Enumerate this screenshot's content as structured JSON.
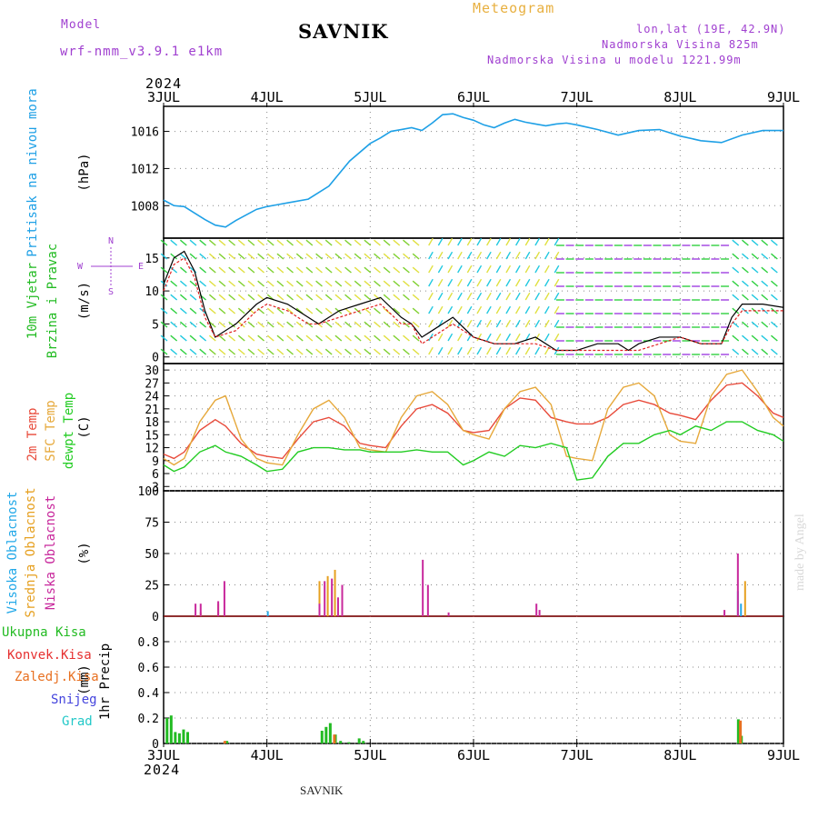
{
  "header": {
    "model_label": "Model",
    "model_name": "wrf-nmm_v3.9.1 e1km",
    "title": "SAVNIK",
    "meteogram": "Meteogram",
    "lonlat": "lon,lat (19E, 42.9N)",
    "altitude": "Nadmorska Visina 825m",
    "model_altitude": "Nadmorska Visina u modelu 1221.99m",
    "year_top": "2024",
    "year_bottom": "2024"
  },
  "footer": {
    "station": "SAVNIK",
    "credit": "made by Angel"
  },
  "colors": {
    "pressure": "#1ea0e6",
    "temp2m": "#e84a3a",
    "sfc": "#e6a83a",
    "dewpt": "#22cc22",
    "high": "#22a8e8",
    "mid": "#e6a020",
    "low": "#c8289c",
    "precip_total": "#22bb22",
    "precip_conv": "#e63030",
    "precip_frozen": "#e87020",
    "snow": "#4444dd",
    "hail": "#22c8c8",
    "header_purple": "#a040d0",
    "header_orange": "#e8b040"
  },
  "chart_data": [
    {
      "type": "line",
      "name": "pressure",
      "ylabel_left": "Pritisak na nivou mora",
      "unit": "(hPa)",
      "ylim": [
        1004.5,
        1018.7
      ],
      "yticks": [
        "1008",
        "1012",
        "1016"
      ],
      "x": [
        0,
        0.1,
        0.2,
        0.3,
        0.4,
        0.5,
        0.6,
        0.7,
        0.8,
        0.9,
        1.0,
        1.1,
        1.2,
        1.4,
        1.6,
        1.8,
        2.0,
        2.1,
        2.2,
        2.3,
        2.4,
        2.5,
        2.6,
        2.7,
        2.8,
        2.9,
        3.0,
        3.1,
        3.2,
        3.3,
        3.4,
        3.5,
        3.6,
        3.7,
        3.8,
        3.9,
        4.0,
        4.2,
        4.4,
        4.6,
        4.8,
        5.0,
        5.2,
        5.4,
        5.6,
        5.8,
        6.0
      ],
      "values": [
        1008.6,
        1008.0,
        1007.9,
        1007.2,
        1006.5,
        1005.9,
        1005.7,
        1006.4,
        1007.0,
        1007.6,
        1007.9,
        1008.1,
        1008.3,
        1008.7,
        1010.1,
        1012.8,
        1014.7,
        1015.3,
        1016.0,
        1016.2,
        1016.4,
        1016.1,
        1016.9,
        1017.8,
        1017.9,
        1017.5,
        1017.2,
        1016.7,
        1016.4,
        1016.9,
        1017.3,
        1017.0,
        1016.8,
        1016.6,
        1016.8,
        1016.9,
        1016.7,
        1016.2,
        1015.6,
        1016.1,
        1016.2,
        1015.5,
        1015.0,
        1014.8,
        1015.6,
        1016.1,
        1016.1
      ]
    },
    {
      "type": "line",
      "name": "wind",
      "ylabel_left": "10m Vjetar",
      "ylabel_left2": "Brzina i Pravac",
      "unit": "(m/s)",
      "compass": [
        "N",
        "W",
        "E",
        "S"
      ],
      "ylim": [
        -1,
        18
      ],
      "yticks": [
        "0",
        "5",
        "10",
        "15"
      ],
      "series": [
        {
          "name": "speed",
          "x": [
            0,
            0.1,
            0.2,
            0.3,
            0.4,
            0.5,
            0.7,
            0.9,
            1.0,
            1.2,
            1.4,
            1.5,
            1.7,
            1.9,
            2.1,
            2.3,
            2.4,
            2.5,
            2.6,
            2.7,
            2.8,
            3.0,
            3.2,
            3.4,
            3.6,
            3.8,
            4.0,
            4.2,
            4.4,
            4.5,
            4.6,
            4.8,
            5.0,
            5.2,
            5.4,
            5.5,
            5.6,
            5.8,
            6.0
          ],
          "values": [
            11,
            15,
            16,
            13,
            7,
            3,
            5,
            8,
            9,
            8,
            6,
            5,
            7,
            8,
            9,
            6,
            5,
            3,
            4,
            5,
            6,
            3,
            2,
            2,
            3,
            1,
            1,
            2,
            2,
            1,
            2,
            3,
            3,
            2,
            2,
            6,
            8,
            8,
            7.5
          ]
        },
        {
          "name": "gust",
          "x": [
            0,
            0.1,
            0.2,
            0.3,
            0.4,
            0.5,
            0.7,
            0.9,
            1.0,
            1.2,
            1.4,
            1.5,
            1.7,
            1.9,
            2.1,
            2.3,
            2.4,
            2.5,
            2.6,
            2.7,
            2.8,
            3.0,
            3.2,
            3.4,
            3.6,
            3.8,
            4.0,
            4.2,
            4.4,
            4.5,
            4.6,
            4.8,
            5.0,
            5.2,
            5.4,
            5.5,
            5.6,
            5.8,
            6.0
          ],
          "values": [
            10,
            14,
            15,
            12,
            6,
            3,
            4,
            7,
            8,
            7,
            5,
            5,
            6,
            7,
            8,
            5,
            5,
            2,
            3,
            4,
            5,
            3,
            2,
            2,
            2,
            1,
            1,
            1,
            1,
            1,
            1,
            2,
            3,
            2,
            2,
            5,
            7,
            7,
            7
          ]
        }
      ]
    },
    {
      "type": "line",
      "name": "temperature",
      "ylabel_left": "2m Temp",
      "ylabel_left2": "SFC Temp",
      "ylabel_left3": "dewpt Temp",
      "unit": "(C)",
      "ylim": [
        2,
        31.5
      ],
      "yticks": [
        "3",
        "6",
        "9",
        "12",
        "15",
        "18",
        "21",
        "24",
        "27",
        "30"
      ],
      "x": [
        0,
        0.1,
        0.2,
        0.35,
        0.5,
        0.6,
        0.75,
        0.9,
        1.0,
        1.15,
        1.3,
        1.45,
        1.6,
        1.75,
        1.9,
        2.0,
        2.15,
        2.3,
        2.45,
        2.6,
        2.75,
        2.9,
        3.0,
        3.15,
        3.3,
        3.45,
        3.6,
        3.75,
        3.9,
        4.0,
        4.15,
        4.3,
        4.45,
        4.6,
        4.75,
        4.9,
        5.0,
        5.15,
        5.3,
        5.45,
        5.6,
        5.75,
        5.9,
        6.0
      ],
      "series": [
        {
          "name": "2m Temp",
          "values": [
            10.5,
            9.5,
            11,
            16,
            18.5,
            17,
            13,
            10.5,
            10,
            9.5,
            14,
            18,
            19,
            17,
            13,
            12.5,
            12,
            17,
            21,
            22,
            20,
            16,
            15.5,
            16,
            21,
            23.5,
            23,
            19,
            18,
            17.5,
            17.5,
            19,
            22,
            23,
            22,
            20,
            19.5,
            18.5,
            23,
            26.5,
            27,
            24,
            20,
            19
          ]
        },
        {
          "name": "SFC Temp",
          "values": [
            9.5,
            8,
            9.5,
            18,
            23,
            24,
            14,
            9.5,
            8.5,
            8,
            15,
            21,
            23,
            19,
            12,
            11.5,
            11,
            19,
            24,
            25,
            22,
            16,
            15,
            14,
            21,
            25,
            26,
            22,
            10,
            9.5,
            9,
            21,
            26,
            27,
            24,
            15,
            13.5,
            13,
            24,
            29,
            30,
            25,
            19,
            17
          ]
        },
        {
          "name": "dewpt Temp",
          "values": [
            8,
            6.5,
            7.5,
            11,
            12.5,
            11,
            10,
            8,
            6.5,
            7,
            11,
            12,
            12,
            11.5,
            11.5,
            11,
            11,
            11,
            11.5,
            11,
            11,
            8,
            9,
            11,
            10,
            12.5,
            12,
            13,
            12,
            4.5,
            5,
            10,
            13,
            13,
            15,
            16,
            15,
            17,
            16,
            18,
            18,
            16,
            15,
            13.5
          ]
        }
      ]
    },
    {
      "type": "bar",
      "name": "cloudiness",
      "ylabel_left": "Visoka Oblacnost",
      "ylabel_left2": "Srednja Oblacnost",
      "ylabel_left3": "Niska Oblacnost",
      "unit": "(%)",
      "ylim": [
        0,
        100
      ],
      "yticks": [
        "0",
        "25",
        "50",
        "75",
        "100"
      ],
      "series": [
        {
          "name": "high",
          "x": [
            1.0,
            5.55,
            5.58
          ],
          "values": [
            4,
            20,
            10
          ]
        },
        {
          "name": "mid",
          "x": [
            0.35,
            0.52,
            1.5,
            1.58,
            1.65,
            1.72,
            5.62
          ],
          "values": [
            3,
            10,
            28,
            32,
            37,
            22,
            28
          ]
        },
        {
          "name": "low",
          "x": [
            0.3,
            0.35,
            0.58,
            0.52,
            1.5,
            1.55,
            1.62,
            1.68,
            1.72,
            2.5,
            2.55,
            2.75,
            3.6,
            3.63,
            5.42,
            5.55
          ],
          "values": [
            10,
            10,
            28,
            12,
            10,
            28,
            30,
            15,
            25,
            45,
            25,
            3,
            10,
            5,
            5,
            50
          ]
        }
      ]
    },
    {
      "type": "bar",
      "name": "precipitation",
      "ylabel_left": "1hr Precip",
      "unit": "(mm)",
      "legend": [
        "Ukupna Kisa",
        "Konvek.Kisa",
        "Zaledj.Kisa",
        "Snijeg",
        "Grad"
      ],
      "ylim": [
        0,
        1.0
      ],
      "yticks": [
        "0",
        "0.2",
        "0.4",
        "0.6",
        "0.8"
      ],
      "series": [
        {
          "name": "Ukupna Kisa",
          "x": [
            0.02,
            0.06,
            0.1,
            0.14,
            0.18,
            0.22,
            0.6,
            1.52,
            1.56,
            1.6,
            1.65,
            1.7,
            1.78,
            1.88,
            1.92,
            5.55,
            5.58
          ],
          "values": [
            0.2,
            0.22,
            0.09,
            0.08,
            0.11,
            0.09,
            0.02,
            0.1,
            0.13,
            0.16,
            0.07,
            0.02,
            0.01,
            0.04,
            0.02,
            0.19,
            0.06
          ]
        },
        {
          "name": "Zaledj.Kisa",
          "x": [
            0.58,
            1.64,
            5.57
          ],
          "values": [
            0.02,
            0.07,
            0.18
          ]
        }
      ]
    }
  ],
  "x_axis": {
    "labels": [
      "3JUL",
      "4JUL",
      "5JUL",
      "6JUL",
      "7JUL",
      "8JUL",
      "9JUL"
    ]
  }
}
